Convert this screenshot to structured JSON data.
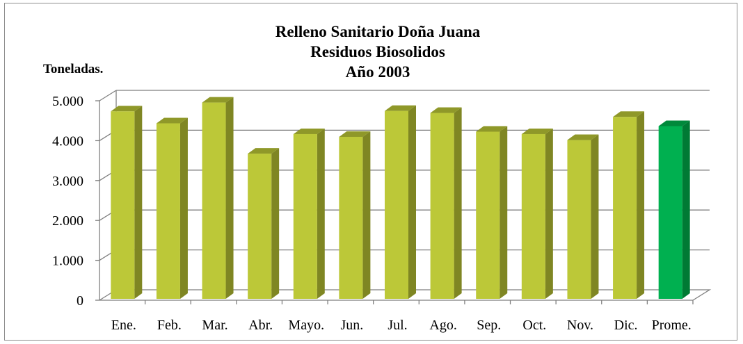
{
  "chart_data": {
    "type": "bar",
    "title": [
      "Relleno Sanitario Doña Juana",
      "Residuos Biosolidos",
      "Año 2003"
    ],
    "ylabel": "Toneladas.",
    "categories": [
      "Ene.",
      "Feb.",
      "Mar.",
      "Abr.",
      "Mayo.",
      "Jun.",
      "Jul.",
      "Ago.",
      "Sep.",
      "Oct.",
      "Nov.",
      "Dic.",
      "Prome."
    ],
    "values": [
      4700,
      4400,
      4920,
      3640,
      4130,
      4060,
      4710,
      4660,
      4190,
      4130,
      3980,
      4560,
      4330
    ],
    "ylim": [
      0,
      5000
    ],
    "yticks": [
      "0",
      "1.000",
      "2.000",
      "3.000",
      "4.000",
      "5.000"
    ],
    "ytick_values": [
      0,
      1000,
      2000,
      3000,
      4000,
      5000
    ],
    "grid": true,
    "style": "3d-column",
    "colors": {
      "bar_front": "#bcc838",
      "bar_side": "#7f8623",
      "bar_top": "#8f9829",
      "highlight_front": "#00b050",
      "highlight_side": "#007a34",
      "highlight_top": "#00893b",
      "gridline": "#7f7f7f"
    },
    "highlight_category": "Prome."
  }
}
